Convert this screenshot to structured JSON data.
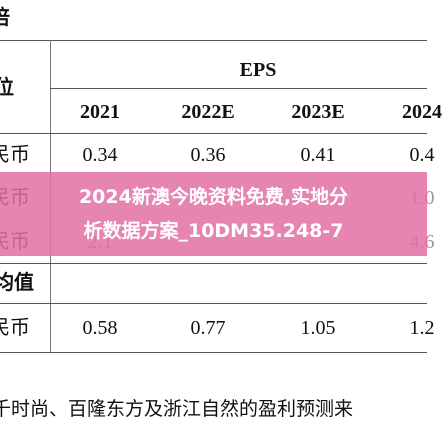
{
  "table": {
    "top_label": "倍",
    "unit_header": "位",
    "group_header": "EPS",
    "columns": [
      "2021",
      "2022E",
      "2023E",
      "2024"
    ],
    "rows": [
      {
        "label": "民币",
        "cells": [
          "0.34",
          "0.36",
          "0.41",
          "0.4"
        ]
      },
      {
        "label": "民币",
        "cells": [
          null,
          null,
          null,
          "1.0"
        ]
      },
      {
        "label": "民币",
        "cells": [
          "2.1",
          null,
          null,
          "4.6"
        ]
      }
    ],
    "section_label": "均值",
    "avg_row": {
      "label": "民币",
      "cells": [
        "0.58",
        "0.77",
        "1.05",
        "1.2"
      ]
    },
    "footnote": "千时尚、百隆东方及浙江自然的盈利预测来"
  },
  "overlay": {
    "lines": [
      "2024新澳今晚资料免费,实地分",
      "析数据方案_10DM35.248-7"
    ]
  }
}
